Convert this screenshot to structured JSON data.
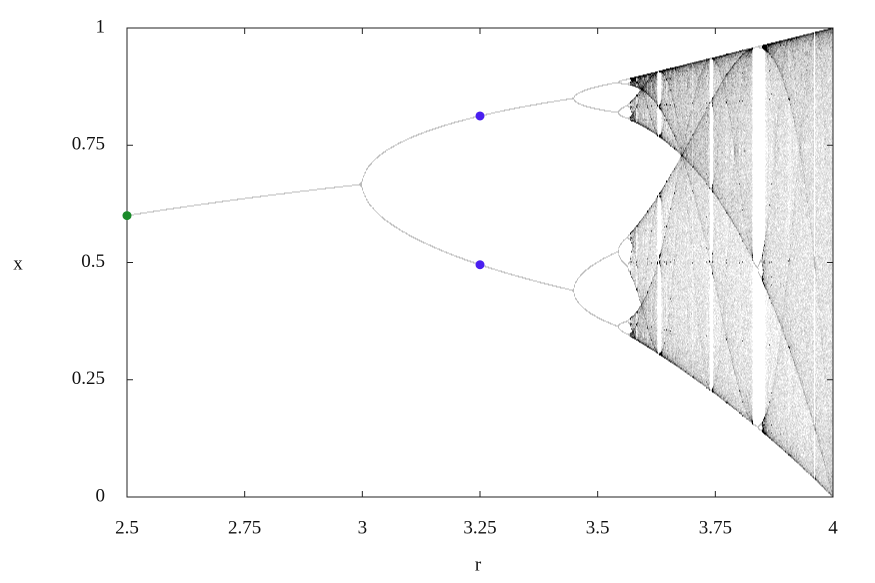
{
  "chart_data": {
    "type": "scatter",
    "xlabel": "r",
    "ylabel": "x",
    "xlim": [
      2.5,
      4
    ],
    "ylim": [
      0,
      1
    ],
    "xticks": [
      2.5,
      2.75,
      3,
      3.25,
      3.5,
      3.75,
      4
    ],
    "yticks": [
      0,
      0.25,
      0.5,
      0.75,
      1
    ],
    "series": [
      {
        "color": "#1a8a2a",
        "x": [
          2.5
        ],
        "values": [
          0.6
        ]
      },
      {
        "color": "#4a1ff0",
        "x": [
          3.25,
          3.25
        ],
        "values": [
          0.8124,
          0.4953
        ]
      }
    ]
  }
}
